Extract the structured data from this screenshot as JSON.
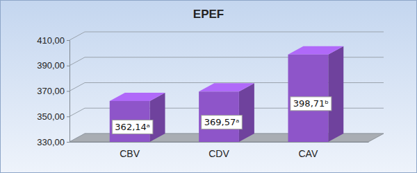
{
  "chart_data": {
    "type": "bar",
    "title": "EPEF",
    "categories": [
      "CBV",
      "CDV",
      "CAV"
    ],
    "values": [
      362.14,
      369.57,
      398.71
    ],
    "value_labels": [
      "362,14ᵃ",
      "369,57ᵃ",
      "398,71ᵇ"
    ],
    "color": "#8e55c9",
    "ylim": [
      330,
      410
    ],
    "yticks": [
      {
        "value": 330,
        "label": "330,00"
      },
      {
        "value": 350,
        "label": "350,00"
      },
      {
        "value": 370,
        "label": "370,00"
      },
      {
        "value": 390,
        "label": "390,00"
      },
      {
        "value": 410,
        "label": "410,00"
      }
    ],
    "grid": true,
    "data_labels": true
  }
}
